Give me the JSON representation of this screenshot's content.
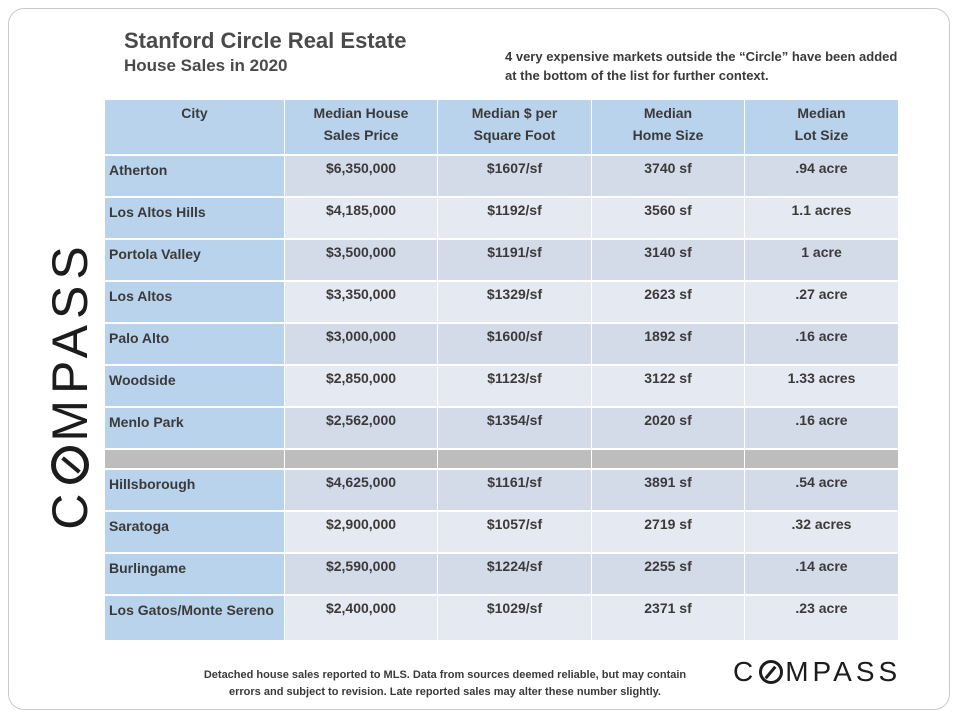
{
  "header": {
    "title": "Stanford Circle Real Estate",
    "subtitle": "House Sales in 2020",
    "note": "4 very expensive markets outside the “Circle” have been added at the bottom of the list for further context."
  },
  "brand": {
    "logo_left": "C",
    "logo_right": "MPASS"
  },
  "table": {
    "headers": [
      [
        "City"
      ],
      [
        "Median House",
        "Sales Price"
      ],
      [
        "Median $ per",
        "Square Foot"
      ],
      [
        "Median",
        "Home Size"
      ],
      [
        "Median",
        "Lot Size"
      ]
    ],
    "rows": [
      {
        "city": "Atherton",
        "price": "$6,350,000",
        "ppsf": "$1607/sf",
        "home": "3740 sf",
        "lot": ".94 acre"
      },
      {
        "city": "Los Altos Hills",
        "price": "$4,185,000",
        "ppsf": "$1192/sf",
        "home": "3560 sf",
        "lot": "1.1 acres"
      },
      {
        "city": "Portola Valley",
        "price": "$3,500,000",
        "ppsf": "$1191/sf",
        "home": "3140 sf",
        "lot": "1 acre"
      },
      {
        "city": "Los Altos",
        "price": "$3,350,000",
        "ppsf": "$1329/sf",
        "home": "2623 sf",
        "lot": ".27 acre"
      },
      {
        "city": "Palo Alto",
        "price": "$3,000,000",
        "ppsf": "$1600/sf",
        "home": "1892 sf",
        "lot": ".16 acre"
      },
      {
        "city": "Woodside",
        "price": "$2,850,000",
        "ppsf": "$1123/sf",
        "home": "3122 sf",
        "lot": "1.33 acres"
      },
      {
        "city": "Menlo Park",
        "price": "$2,562,000",
        "ppsf": "$1354/sf",
        "home": "2020 sf",
        "lot": ".16 acre"
      }
    ],
    "context_rows": [
      {
        "city": "Hillsborough",
        "price": "$4,625,000",
        "ppsf": "$1161/sf",
        "home": "3891 sf",
        "lot": ".54 acre"
      },
      {
        "city": "Saratoga",
        "price": "$2,900,000",
        "ppsf": "$1057/sf",
        "home": "2719 sf",
        "lot": ".32 acres"
      },
      {
        "city": "Burlingame",
        "price": "$2,590,000",
        "ppsf": "$1224/sf",
        "home": "2255 sf",
        "lot": ".14 acre"
      },
      {
        "city": "Los Gatos/Monte Sereno",
        "price": "$2,400,000",
        "ppsf": "$1029/sf",
        "home": "2371 sf",
        "lot": ".23 acre"
      }
    ]
  },
  "footer": {
    "line1": "Detached house sales reported to MLS. Data from sources deemed reliable, but may contain",
    "line2": "errors and subject to revision. Late reported sales may alter these number slightly."
  }
}
